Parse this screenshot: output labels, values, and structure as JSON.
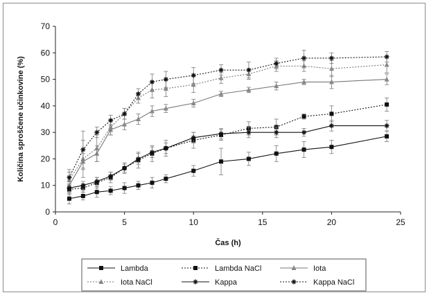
{
  "chart_data": {
    "type": "line",
    "xlabel": "Čas (h)",
    "ylabel": "Količina sproščene učinkovine (%)",
    "xlim": [
      0,
      25
    ],
    "ylim": [
      0,
      70
    ],
    "xticks": [
      0,
      5,
      10,
      15,
      20,
      25
    ],
    "yticks": [
      0,
      10,
      20,
      30,
      40,
      50,
      60,
      70
    ],
    "grid": false,
    "legend_position": "bottom",
    "x": [
      1,
      2,
      3,
      4,
      5,
      6,
      7,
      8,
      10,
      12,
      14,
      16,
      18,
      20,
      24
    ],
    "series": [
      {
        "name": "Lambda",
        "line": "solid",
        "marker": "square",
        "values": [
          5,
          6,
          7.5,
          8,
          9,
          10,
          11,
          12.5,
          15.5,
          19,
          20,
          22,
          23.5,
          24.5,
          28.5
        ],
        "errors": [
          2,
          1.5,
          2,
          1.5,
          2,
          1.5,
          2,
          1.5,
          2,
          5,
          2.5,
          3,
          3,
          2.5,
          2
        ]
      },
      {
        "name": "Lambda NaCl",
        "line": "dotted",
        "marker": "square",
        "values": [
          8.5,
          9,
          11,
          13,
          16.5,
          19.5,
          22,
          24,
          27,
          29,
          31.5,
          32,
          36,
          37,
          40.5
        ],
        "errors": [
          2,
          1.5,
          2,
          2,
          2,
          3,
          3,
          3,
          3,
          2,
          2.5,
          3,
          1,
          3,
          2.5
        ]
      },
      {
        "name": "Iota",
        "line": "solid",
        "marker": "triangle",
        "values": [
          10,
          19,
          22,
          31,
          33,
          35,
          38,
          39,
          41,
          44.5,
          46,
          47.5,
          49,
          49,
          50
        ],
        "errors": [
          3,
          3,
          3,
          2,
          2,
          2,
          2,
          1.5,
          1.5,
          1,
          1,
          1.5,
          1,
          2.5,
          2
        ]
      },
      {
        "name": "Iota NaCl",
        "line": "dotted",
        "marker": "triangle",
        "values": [
          12,
          20,
          24,
          32,
          37,
          43,
          46,
          46.5,
          48,
          50.5,
          52,
          55,
          55,
          54,
          55.5
        ],
        "errors": [
          3,
          7,
          5,
          3,
          2,
          2,
          3,
          3,
          3,
          2,
          2,
          2,
          2,
          3,
          3
        ]
      },
      {
        "name": "Kappa",
        "line": "solid",
        "marker": "star",
        "values": [
          9,
          10,
          11.5,
          13.5,
          16.5,
          20,
          22.5,
          24,
          28,
          29.5,
          30,
          30,
          30,
          32.5,
          32.5
        ],
        "errors": [
          1.5,
          1.5,
          1.5,
          1.5,
          1.5,
          2,
          2,
          2,
          2,
          2,
          2,
          2,
          1.5,
          2,
          2
        ]
      },
      {
        "name": "Kappa NaCl",
        "line": "dotted",
        "marker": "star",
        "values": [
          13,
          23.5,
          30,
          34.5,
          37,
          44.5,
          49,
          50,
          51.5,
          53.5,
          53.5,
          56,
          58,
          58,
          58.5
        ],
        "errors": [
          3,
          7,
          2,
          2,
          2,
          2,
          3,
          3,
          3,
          2,
          3,
          2,
          3,
          2,
          2
        ]
      }
    ]
  }
}
